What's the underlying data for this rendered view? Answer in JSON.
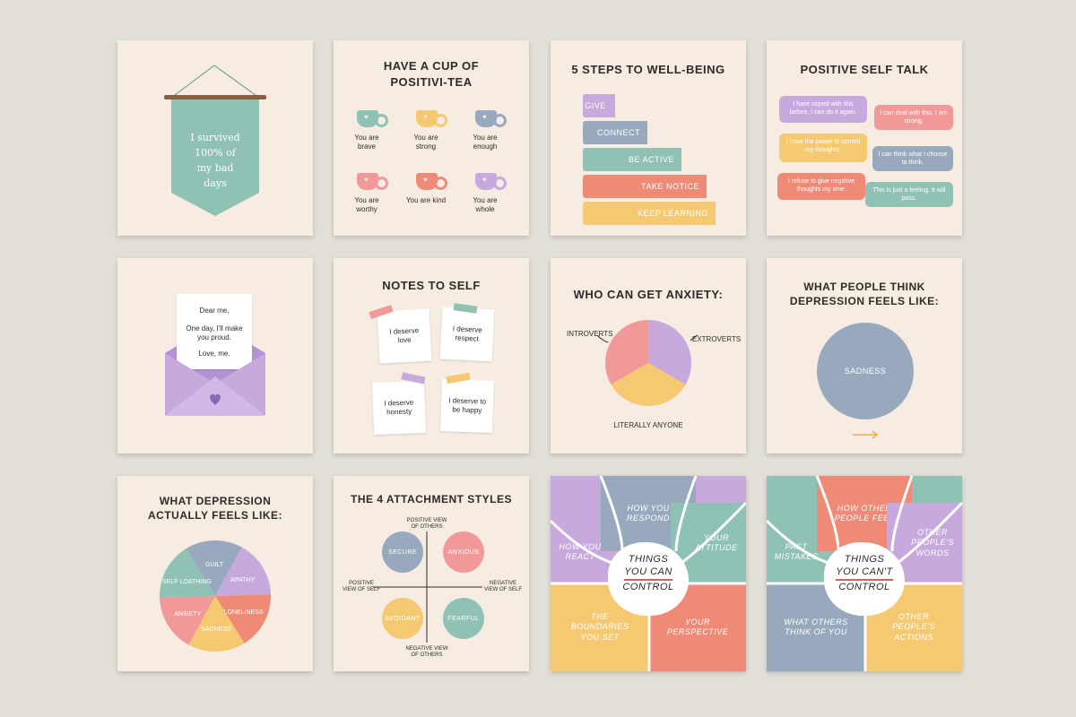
{
  "colors": {
    "background": "#e2dfd8",
    "card": "#f6ece2",
    "sage": "#8fc1b5",
    "pink": "#f19898",
    "yellow": "#f5c971",
    "blue": "#98a9bd",
    "lilac": "#c7a9dd",
    "coral": "#ee8a76"
  },
  "card1": {
    "banner_text": "I survived 100% of my bad days"
  },
  "card2": {
    "title": "HAVE A CUP OF POSITIVI-TEA",
    "cups": [
      "You are brave",
      "You are strong",
      "You are enough",
      "You are worthy",
      "You are kind",
      "You are whole"
    ]
  },
  "card3": {
    "title": "5 STEPS TO WELL-BEING",
    "steps": [
      "GIVE",
      "CONNECT",
      "BE ACTIVE",
      "TAKE NOTICE",
      "KEEP LEARNING"
    ]
  },
  "card4": {
    "title": "POSITIVE SELF TALK",
    "bubbles": [
      "I have coped with this before, I can do it again.",
      "I can deal with this. I am strong.",
      "I have the power to control my thoughts.",
      "I can think what I choose to think.",
      "I refuse to give negative thoughts my time.",
      "This is just a feeling. It will pass."
    ]
  },
  "card5": {
    "letter": [
      "Dear me,",
      "One day, I'll make you proud.",
      "Love, me."
    ]
  },
  "card6": {
    "title": "NOTES TO SELF",
    "notes": [
      "I deserve love",
      "I deserve respect",
      "I deserve honesty",
      "I deserve to be happy"
    ]
  },
  "card7": {
    "title": "WHO CAN GET ANXIETY:",
    "labels": [
      "INTROVERTS",
      "EXTROVERTS",
      "LITERALLY ANYONE"
    ]
  },
  "card8": {
    "title": "WHAT PEOPLE THINK DEPRESSION FEELS LIKE:",
    "circle_label": "SADNESS"
  },
  "card9": {
    "title": "WHAT DEPRESSION ACTUALLY FEELS LIKE:",
    "slices": [
      "GUILT",
      "APATHY",
      "LONELINESS",
      "SADNESS",
      "ANXIETY",
      "SELF LOATHING"
    ]
  },
  "card10": {
    "title": "THE 4 ATTACHMENT STYLES",
    "axis_top": "POSITIVE VIEW OF OTHERS",
    "axis_bottom": "NEGATIVE VIEW OF OTHERS",
    "axis_left": "POSITIVE VIEW OF SELF",
    "axis_right": "NEGATIVE VIEW OF SELF",
    "styles": [
      "SECURE",
      "ANXIOUS",
      "AVOIDANT",
      "FEARFUL"
    ]
  },
  "card11": {
    "center": [
      "THINGS",
      "YOU CAN",
      "CONTROL"
    ],
    "segments": [
      "HOW YOU RESPOND",
      "HOW YOU REACT",
      "YOUR ATTITUDE",
      "THE BOUNDARIES YOU SET",
      "YOUR PERSPECTIVE"
    ]
  },
  "card12": {
    "center": [
      "THINGS",
      "YOU CAN'T",
      "CONTROL"
    ],
    "segments": [
      "HOW OTHER PEOPLE FEEL",
      "PAST MISTAKES",
      "OTHER PEOPLE'S WORDS",
      "WHAT OTHERS THINK OF YOU",
      "OTHER PEOPLE'S ACTIONS"
    ]
  }
}
